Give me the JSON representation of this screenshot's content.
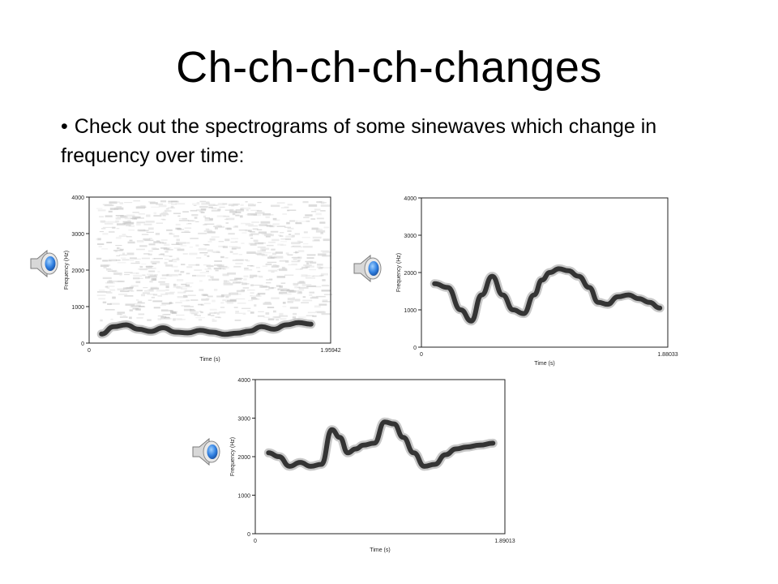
{
  "slide": {
    "title": "Ch-ch-ch-ch-changes",
    "bullet_marker": "•",
    "bullet_text": "Check out the spectrograms of some sinewaves which change in frequency over time:"
  },
  "speaker_icon_name": "speaker-icon",
  "chart_data": [
    {
      "type": "line",
      "xlabel": "Time (s)",
      "ylabel": "Frequency (Hz)",
      "xlim": [
        0,
        1.95942
      ],
      "ylim": [
        0,
        4000
      ],
      "x_ticks": [
        "0",
        "1.95942"
      ],
      "y_ticks": [
        "0",
        "1000",
        "2000",
        "3000",
        "4000"
      ],
      "noise_background": true,
      "series": [
        {
          "x": [
            0.1,
            0.2,
            0.3,
            0.4,
            0.5,
            0.6,
            0.7,
            0.8,
            0.9,
            1.0,
            1.1,
            1.2,
            1.3,
            1.4,
            1.5,
            1.6,
            1.7,
            1.8
          ],
          "values": [
            250,
            450,
            500,
            380,
            320,
            420,
            300,
            280,
            350,
            300,
            240,
            270,
            330,
            450,
            380,
            500,
            560,
            520
          ]
        }
      ]
    },
    {
      "type": "line",
      "xlabel": "Time (s)",
      "ylabel": "Frequency (Hz)",
      "xlim": [
        0,
        1.88033
      ],
      "ylim": [
        0,
        4000
      ],
      "x_ticks": [
        "0",
        "1.88033"
      ],
      "y_ticks": [
        "0",
        "1000",
        "2000",
        "3000",
        "4000"
      ],
      "noise_background": false,
      "series": [
        {
          "x": [
            0.1,
            0.2,
            0.3,
            0.38,
            0.46,
            0.54,
            0.62,
            0.7,
            0.78,
            0.86,
            0.92,
            0.98,
            1.05,
            1.12,
            1.2,
            1.28,
            1.35,
            1.42,
            1.5,
            1.58,
            1.66,
            1.74,
            1.82
          ],
          "values": [
            1700,
            1600,
            1000,
            700,
            1400,
            1900,
            1400,
            1000,
            900,
            1400,
            1800,
            2000,
            2100,
            2050,
            1900,
            1600,
            1200,
            1150,
            1350,
            1400,
            1300,
            1200,
            1050
          ]
        }
      ]
    },
    {
      "type": "line",
      "xlabel": "Time (s)",
      "ylabel": "Frequency (Hz)",
      "xlim": [
        0,
        1.89013
      ],
      "ylim": [
        0,
        4000
      ],
      "x_ticks": [
        "0",
        "1.89013"
      ],
      "y_ticks": [
        "0",
        "1000",
        "2000",
        "3000",
        "4000"
      ],
      "noise_background": false,
      "series": [
        {
          "x": [
            0.1,
            0.18,
            0.26,
            0.34,
            0.42,
            0.5,
            0.58,
            0.64,
            0.7,
            0.76,
            0.82,
            0.9,
            0.98,
            1.05,
            1.12,
            1.2,
            1.28,
            1.36,
            1.44,
            1.52,
            1.6,
            1.7,
            1.8
          ],
          "values": [
            2100,
            2000,
            1750,
            1850,
            1750,
            1800,
            2700,
            2500,
            2100,
            2200,
            2300,
            2350,
            2900,
            2850,
            2500,
            2100,
            1750,
            1800,
            2050,
            2200,
            2250,
            2300,
            2350
          ]
        }
      ]
    }
  ]
}
